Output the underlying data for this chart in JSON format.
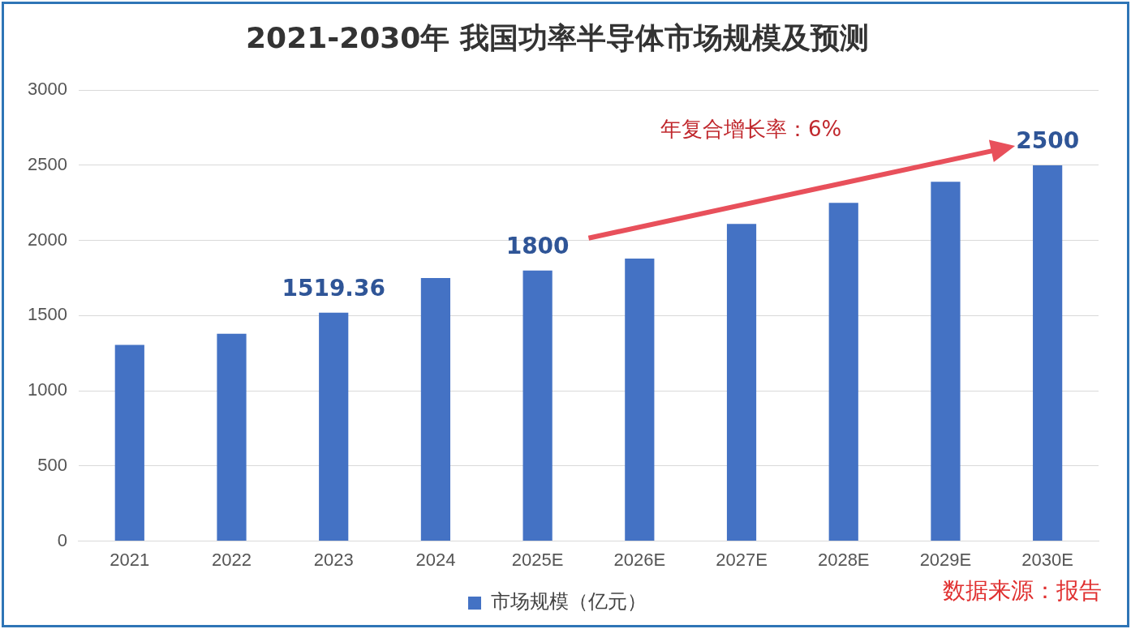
{
  "chart_data": {
    "type": "bar",
    "title": "2021-2030年 我国功率半导体市场规模及预测",
    "categories": [
      "2021",
      "2022",
      "2023",
      "2024",
      "2025E",
      "2026E",
      "2027E",
      "2028E",
      "2029E",
      "2030E"
    ],
    "series": [
      {
        "name": "市场规模（亿元）",
        "color": "#4472c4",
        "values": [
          1305,
          1380,
          1519.36,
          1750,
          1800,
          1880,
          2110,
          2250,
          2390,
          2500
        ],
        "value_labels": [
          null,
          null,
          "1519.36",
          null,
          "1800",
          null,
          null,
          null,
          null,
          "2500"
        ]
      }
    ],
    "ylim": [
      0,
      3000
    ],
    "yticks": [
      0,
      500,
      1000,
      1500,
      2000,
      2500,
      3000
    ],
    "grid": "y",
    "legend": "bottom",
    "annotations": [
      "年复合增长率：6%",
      "数据来源：报告"
    ]
  }
}
